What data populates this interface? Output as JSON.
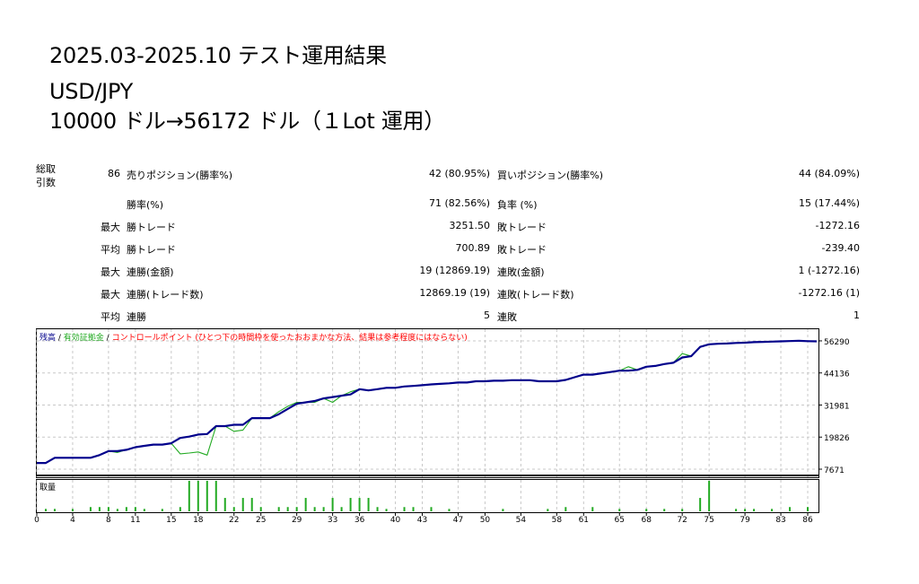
{
  "header": {
    "line1": "2025.03-2025.10 テスト運用結果",
    "line2": "USD/JPY",
    "line3": "10000 ドル→56172 ドル（１Lot 運用）"
  },
  "stats": {
    "total_trades_label_1": "総取",
    "total_trades_label_2": "引数",
    "total_trades": "86",
    "rows": [
      {
        "left_label": "売りポジション(勝率%)",
        "left_value": "42 (80.95%)",
        "right_label": "買いポジション(勝率%)",
        "right_value": "44 (84.09%)"
      },
      {
        "left_label": "勝率(%)",
        "left_value": "71 (82.56%)",
        "right_label": "負率 (%)",
        "right_value": "15 (17.44%)"
      },
      {
        "prefix": "最大",
        "left_label": "勝トレード",
        "left_value": "3251.50",
        "right_label": "敗トレード",
        "right_value": "-1272.16"
      },
      {
        "prefix": "平均",
        "left_label": "勝トレード",
        "left_value": "700.89",
        "right_label": "敗トレード",
        "right_value": "-239.40"
      },
      {
        "prefix": "最大",
        "left_label": "連勝(金額)",
        "left_value": "19 (12869.19)",
        "right_label": "連敗(金額)",
        "right_value": "1 (-1272.16)"
      },
      {
        "prefix": "最大",
        "left_label": "連勝(トレード数)",
        "left_value": "12869.19 (19)",
        "right_label": "連敗(トレード数)",
        "right_value": "-1272.16 (1)"
      },
      {
        "prefix": "平均",
        "left_label": "連勝",
        "left_value": "5",
        "right_label": "連敗",
        "right_value": "1"
      }
    ]
  },
  "chart_data": [
    {
      "type": "line",
      "legend": [
        {
          "name": "残高",
          "color": "#00008b"
        },
        {
          "name": "有効証拠金",
          "color": "#22aa22"
        },
        {
          "name": "コントロールポイント (ひとつ下の時間枠を使ったおおまかな方法、結果は参考程度にはならない)",
          "color": "#ff0000"
        }
      ],
      "separators": [
        " / ",
        " / "
      ],
      "ylim": [
        7671,
        59000
      ],
      "yticks": [
        "56290",
        "44136",
        "31981",
        "19826",
        "7671"
      ],
      "xlim": [
        0,
        87
      ],
      "series": [
        {
          "name": "残高",
          "color": "#00008b",
          "x": [
            0,
            1,
            2,
            3,
            4,
            5,
            6,
            7,
            8,
            9,
            10,
            11,
            12,
            13,
            14,
            15,
            16,
            17,
            18,
            19,
            20,
            21,
            22,
            23,
            24,
            25,
            26,
            27,
            28,
            29,
            30,
            31,
            32,
            33,
            34,
            35,
            36,
            37,
            38,
            39,
            40,
            41,
            42,
            43,
            44,
            45,
            46,
            47,
            48,
            49,
            50,
            51,
            52,
            53,
            54,
            55,
            56,
            57,
            58,
            59,
            60,
            61,
            62,
            63,
            64,
            65,
            66,
            67,
            68,
            69,
            70,
            71,
            72,
            73,
            74,
            75,
            76,
            77,
            78,
            79,
            80,
            81,
            82,
            83,
            84,
            85,
            86,
            87
          ],
          "y": [
            10000,
            10000,
            12000,
            12000,
            12000,
            12000,
            12000,
            13000,
            14500,
            14500,
            15000,
            16000,
            16500,
            17000,
            17000,
            17500,
            19500,
            20000,
            20800,
            21000,
            24000,
            24000,
            24500,
            24500,
            27000,
            27000,
            27000,
            28500,
            30500,
            32500,
            33000,
            33500,
            34500,
            35000,
            35500,
            36000,
            38000,
            37500,
            38000,
            38500,
            38500,
            39000,
            39200,
            39500,
            39800,
            40000,
            40200,
            40500,
            40500,
            41000,
            41000,
            41200,
            41200,
            41400,
            41400,
            41400,
            41000,
            41000,
            41000,
            41500,
            42500,
            43500,
            43500,
            44000,
            44500,
            45000,
            45000,
            45300,
            46500,
            46800,
            47500,
            48000,
            50000,
            50500,
            54000,
            55000,
            55200,
            55300,
            55500,
            55600,
            55800,
            55900,
            56000,
            56100,
            56200,
            56300,
            56172,
            56100
          ]
        },
        {
          "name": "有効証拠金",
          "color": "#22aa22",
          "x": [
            0,
            1,
            2,
            3,
            4,
            5,
            6,
            7,
            8,
            9,
            10,
            11,
            12,
            13,
            14,
            15,
            16,
            17,
            18,
            19,
            20,
            21,
            22,
            23,
            24,
            25,
            26,
            27,
            28,
            29,
            30,
            31,
            32,
            33,
            34,
            35,
            36,
            37,
            38,
            39,
            40,
            41,
            42,
            43,
            44,
            45,
            46,
            47,
            48,
            49,
            50,
            51,
            52,
            53,
            54,
            55,
            56,
            57,
            58,
            59,
            60,
            61,
            62,
            63,
            64,
            65,
            66,
            67,
            68,
            69,
            70,
            71,
            72,
            73,
            74,
            75,
            76,
            77,
            78,
            79,
            80,
            81,
            82,
            83,
            84,
            85,
            86,
            87
          ],
          "y": [
            10000,
            10000,
            12000,
            12000,
            12000,
            12000,
            12000,
            13000,
            14500,
            14000,
            15000,
            16000,
            16500,
            17000,
            17000,
            17500,
            13500,
            13800,
            14200,
            13000,
            24000,
            24000,
            22000,
            22500,
            27000,
            27000,
            27000,
            29500,
            31500,
            33000,
            33000,
            33000,
            34500,
            33000,
            35500,
            37000,
            38000,
            37500,
            38000,
            38500,
            38500,
            39000,
            39200,
            39500,
            39800,
            40000,
            40200,
            40500,
            40500,
            41000,
            41000,
            41200,
            41200,
            41400,
            41400,
            41400,
            41000,
            41000,
            41000,
            41500,
            42500,
            43500,
            43500,
            44000,
            44500,
            45000,
            46500,
            45300,
            46500,
            46800,
            47500,
            48000,
            51500,
            50500,
            54000,
            55000,
            55200,
            55300,
            55500,
            55600,
            55800,
            55900,
            56000,
            56100,
            56200,
            56300,
            56172,
            56100
          ]
        }
      ]
    },
    {
      "type": "bar",
      "title": "取量",
      "xticks": [
        "0",
        "4",
        "8",
        "11",
        "15",
        "18",
        "22",
        "25",
        "29",
        "33",
        "36",
        "40",
        "43",
        "47",
        "50",
        "54",
        "58",
        "61",
        "65",
        "68",
        "72",
        "75",
        "79",
        "83",
        "86"
      ],
      "xlim": [
        0,
        87
      ],
      "ylim": [
        0,
        1
      ],
      "x": [
        1,
        2,
        4,
        6,
        7,
        8,
        9,
        10,
        11,
        12,
        14,
        16,
        17,
        18,
        19,
        20,
        21,
        22,
        23,
        24,
        25,
        27,
        28,
        29,
        30,
        31,
        32,
        33,
        34,
        35,
        36,
        37,
        38,
        39,
        41,
        42,
        44,
        46,
        52,
        57,
        59,
        62,
        65,
        68,
        70,
        72,
        74,
        75,
        78,
        79,
        80,
        82,
        84,
        86
      ],
      "values": [
        0.08,
        0.08,
        0.08,
        0.14,
        0.14,
        0.14,
        0.08,
        0.14,
        0.14,
        0.08,
        0.08,
        0.14,
        1.0,
        1.0,
        1.0,
        1.0,
        0.44,
        0.14,
        0.44,
        0.44,
        0.14,
        0.14,
        0.14,
        0.14,
        0.44,
        0.14,
        0.14,
        0.44,
        0.14,
        0.44,
        0.44,
        0.44,
        0.14,
        0.08,
        0.14,
        0.14,
        0.14,
        0.08,
        0.08,
        0.08,
        0.14,
        0.14,
        0.08,
        0.08,
        0.08,
        0.08,
        0.44,
        1.0,
        0.08,
        0.08,
        0.08,
        0.08,
        0.14,
        0.14
      ]
    }
  ]
}
